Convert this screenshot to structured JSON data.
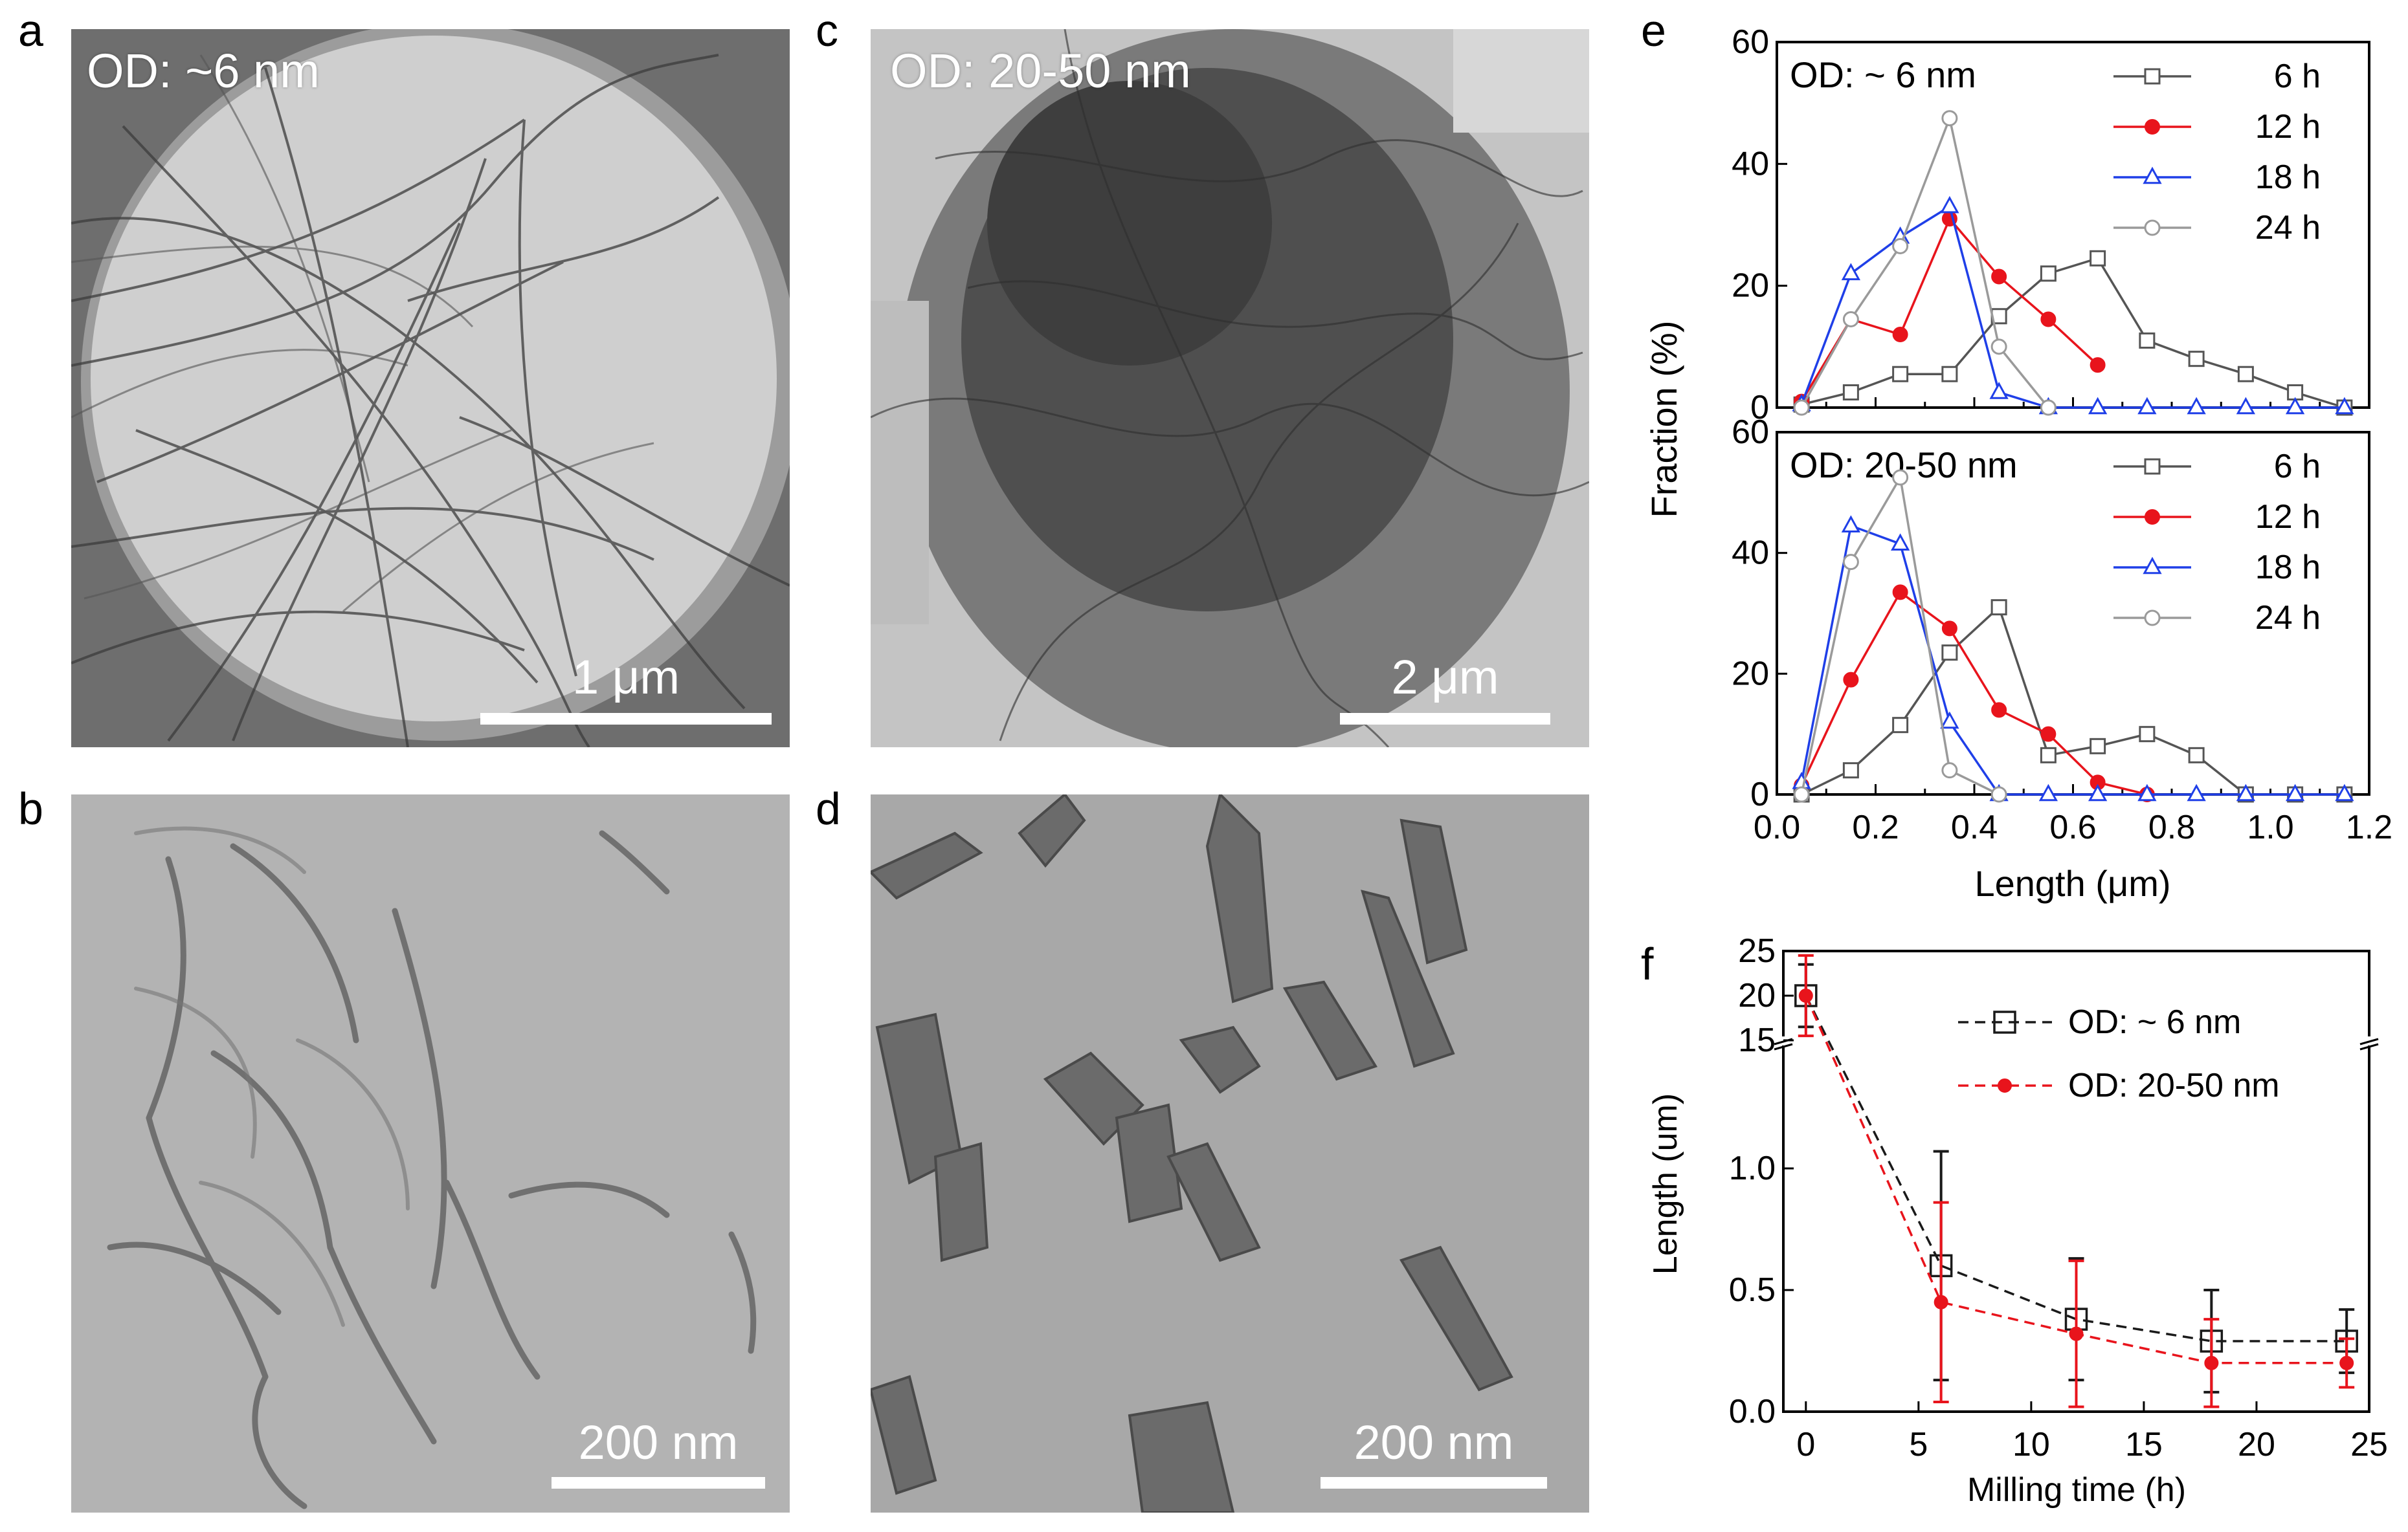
{
  "panel_letters": {
    "a": "a",
    "b": "b",
    "c": "c",
    "d": "d",
    "e": "e",
    "f": "f"
  },
  "micrographs": {
    "a": {
      "label": "OD: ~6 nm",
      "scale": "1 μm"
    },
    "b": {
      "scale": "200 nm"
    },
    "c": {
      "label": "OD: 20-50 nm",
      "scale": "2 μm"
    },
    "d": {
      "scale": "200 nm"
    }
  },
  "colors": {
    "s6h": "#555555",
    "s12h": "#e8141c",
    "s18h": "#1f3fe8",
    "s24h": "#9a9a9a",
    "od6": "#1a1a1a",
    "od2050": "#e8141c"
  },
  "chart_data": [
    {
      "type": "line",
      "panel": "e-top",
      "title": "OD: ~ 6 nm",
      "ylabel": "Fraction (%)",
      "ylim": [
        0,
        60
      ],
      "yticks": [
        0,
        20,
        40,
        60
      ],
      "xlim": [
        0,
        1.2
      ],
      "series": [
        {
          "name": "6 h",
          "marker": "square",
          "x": [
            0.05,
            0.15,
            0.25,
            0.35,
            0.45,
            0.55,
            0.65,
            0.75,
            0.85,
            0.95,
            1.05,
            1.15
          ],
          "y": [
            0.5,
            2.5,
            5.5,
            5.5,
            15,
            22,
            24.5,
            11,
            8,
            5.5,
            2.5,
            0
          ]
        },
        {
          "name": "12 h",
          "marker": "circle-filled",
          "x": [
            0.05,
            0.15,
            0.25,
            0.35,
            0.45,
            0.55,
            0.65
          ],
          "y": [
            1,
            14.5,
            12,
            31,
            21.5,
            14.5,
            7
          ]
        },
        {
          "name": "18 h",
          "marker": "triangle",
          "x": [
            0.05,
            0.15,
            0.25,
            0.35,
            0.45,
            0.55,
            0.65,
            0.75,
            0.85,
            0.95,
            1.05,
            1.15
          ],
          "y": [
            0.5,
            22,
            28,
            33,
            2.5,
            0,
            0,
            0,
            0,
            0,
            0,
            0
          ]
        },
        {
          "name": "24 h",
          "marker": "circle-open",
          "x": [
            0.05,
            0.15,
            0.25,
            0.35,
            0.45,
            0.55
          ],
          "y": [
            0,
            14.5,
            26.5,
            47.5,
            10,
            0
          ]
        }
      ]
    },
    {
      "type": "line",
      "panel": "e-bottom",
      "title": "OD: 20-50 nm",
      "xlabel": "Length (μm)",
      "ylabel": "Fraction (%)",
      "ylim": [
        0,
        60
      ],
      "yticks": [
        0,
        20,
        40,
        60
      ],
      "xlim": [
        0,
        1.2
      ],
      "xticks": [
        "0.0",
        "0.2",
        "0.4",
        "0.6",
        "0.8",
        "1.0",
        "1.2"
      ],
      "series": [
        {
          "name": "6 h",
          "marker": "square",
          "x": [
            0.05,
            0.15,
            0.25,
            0.35,
            0.45,
            0.55,
            0.65,
            0.75,
            0.85,
            0.95,
            1.05,
            1.15
          ],
          "y": [
            0,
            4,
            11.5,
            23.5,
            31,
            6.5,
            8,
            10,
            6.5,
            0,
            0,
            0
          ]
        },
        {
          "name": "12 h",
          "marker": "circle-filled",
          "x": [
            0.05,
            0.15,
            0.25,
            0.35,
            0.45,
            0.55,
            0.65,
            0.75
          ],
          "y": [
            1.5,
            19,
            33.5,
            27.5,
            14,
            10,
            2,
            0
          ]
        },
        {
          "name": "18 h",
          "marker": "triangle",
          "x": [
            0.05,
            0.15,
            0.25,
            0.35,
            0.45,
            0.55,
            0.65,
            0.75,
            0.85,
            0.95,
            1.05,
            1.15
          ],
          "y": [
            2,
            44.5,
            41.5,
            12,
            0,
            0,
            0,
            0,
            0,
            0,
            0,
            0
          ]
        },
        {
          "name": "24 h",
          "marker": "circle-open",
          "x": [
            0.05,
            0.15,
            0.25,
            0.35,
            0.45
          ],
          "y": [
            0,
            38.5,
            52.5,
            4,
            0
          ]
        }
      ]
    },
    {
      "type": "scatter",
      "panel": "f",
      "xlabel": "Milling time (h)",
      "ylabel": "Length (um)",
      "xlim": [
        -1,
        25
      ],
      "xticks": [
        0,
        5,
        10,
        15,
        20,
        25
      ],
      "ylim_lower": [
        0,
        1.5
      ],
      "yticks_lower": [
        "0.0",
        "0.5",
        "1.0"
      ],
      "ylim_upper": [
        15,
        25
      ],
      "yticks_upper": [
        "15",
        "20",
        "25"
      ],
      "axis_break": true,
      "series": [
        {
          "name": "OD: ~ 6 nm",
          "marker": "square-open",
          "line": "dashed",
          "x": [
            0,
            6,
            12,
            18,
            24
          ],
          "y": [
            20,
            0.6,
            0.38,
            0.29,
            0.29
          ],
          "err": [
            3.5,
            0.47,
            0.25,
            0.21,
            0.13
          ]
        },
        {
          "name": "OD: 20-50 nm",
          "marker": "circle-filled",
          "line": "dashed",
          "x": [
            0,
            6,
            12,
            18,
            24
          ],
          "y": [
            20,
            0.45,
            0.32,
            0.2,
            0.2
          ],
          "err": [
            4.5,
            0.41,
            0.3,
            0.18,
            0.1
          ]
        }
      ]
    }
  ]
}
